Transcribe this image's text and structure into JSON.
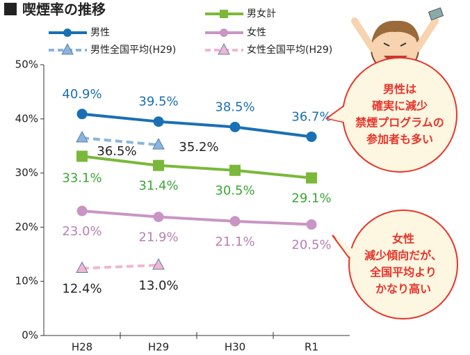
{
  "chart_data": {
    "type": "line",
    "title": "喫煙率の推移",
    "categories": [
      "H28",
      "H29",
      "H30",
      "R1"
    ],
    "ylim": [
      0,
      50
    ],
    "yticks": [
      {
        "value": 0,
        "label": "0%"
      },
      {
        "value": 10,
        "label": "10%"
      },
      {
        "value": 20,
        "label": "20%"
      },
      {
        "value": 30,
        "label": "30%"
      },
      {
        "value": 40,
        "label": "40%"
      },
      {
        "value": 50,
        "label": "50%"
      }
    ],
    "series": [
      {
        "name": "男性",
        "color": "#1a6fb5",
        "marker": "circle",
        "dashed": false,
        "label_color": "#1a6fb5",
        "values": [
          40.9,
          39.5,
          38.5,
          36.7
        ],
        "value_labels": [
          "40.9%",
          "39.5%",
          "38.5%",
          "36.7%"
        ]
      },
      {
        "name": "男女計",
        "color": "#7ab83a",
        "marker": "square",
        "dashed": false,
        "label_color": "#3aa635",
        "values": [
          33.1,
          31.4,
          30.5,
          29.1
        ],
        "value_labels": [
          "33.1%",
          "31.4%",
          "30.5%",
          "29.1%"
        ]
      },
      {
        "name": "女性",
        "color": "#c995c4",
        "marker": "circle",
        "dashed": false,
        "label_color": "#b97fb4",
        "values": [
          23.0,
          21.9,
          21.1,
          20.5
        ],
        "value_labels": [
          "23.0%",
          "21.9%",
          "21.1%",
          "20.5%"
        ]
      },
      {
        "name": "男性全国平均(H29)",
        "color": "#8ab4de",
        "marker": "triangle",
        "dashed": true,
        "label_color": "#222222",
        "values": [
          36.5,
          35.2,
          null,
          null
        ],
        "value_labels": [
          "36.5%",
          "35.2%",
          null,
          null
        ]
      },
      {
        "name": "女性全国平均(H29)",
        "color": "#f0b6d2",
        "marker": "triangle",
        "dashed": true,
        "label_color": "#222222",
        "values": [
          12.4,
          13.0,
          null,
          null
        ],
        "value_labels": [
          "12.4%",
          "13.0%",
          null,
          null
        ]
      }
    ],
    "annotations": [
      {
        "lines": [
          "男性は",
          "確実に減少",
          "禁煙プログラムの",
          "参加者も多い"
        ]
      },
      {
        "lines": [
          "女性",
          "減少傾向だが、",
          "全国平均より",
          "かなり高い"
        ]
      }
    ]
  }
}
